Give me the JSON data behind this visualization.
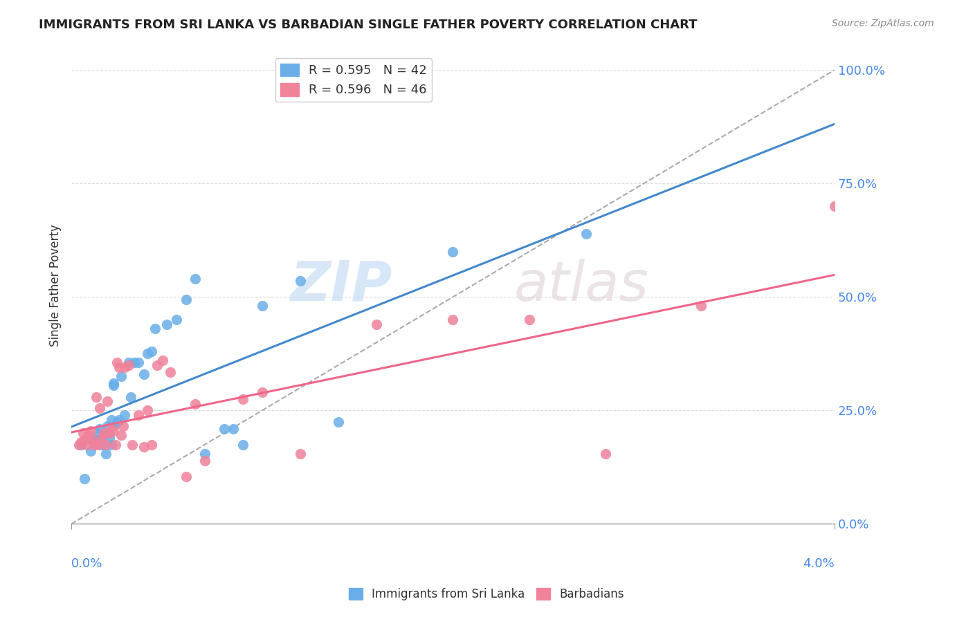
{
  "title": "IMMIGRANTS FROM SRI LANKA VS BARBADIAN SINGLE FATHER POVERTY CORRELATION CHART",
  "source": "Source: ZipAtlas.com",
  "ylabel": "Single Father Poverty",
  "ytick_labels": [
    "0.0%",
    "25.0%",
    "50.0%",
    "75.0%",
    "100.0%"
  ],
  "ytick_values": [
    0.0,
    0.25,
    0.5,
    0.75,
    1.0
  ],
  "xlim": [
    0.0,
    0.04
  ],
  "ylim": [
    0.0,
    1.05
  ],
  "color_blue": "#6aaee8",
  "color_pink": "#f0829a",
  "color_line_blue": "#4488cc",
  "color_line_pink": "#ee6688",
  "color_dashed_line": "#aaaaaa",
  "watermark_zip": "ZIP",
  "watermark_atlas": "atlas",
  "sri_lanka_x": [
    0.0005,
    0.0007,
    0.001,
    0.0012,
    0.0013,
    0.0014,
    0.0015,
    0.0016,
    0.0017,
    0.0018,
    0.0019,
    0.002,
    0.0021,
    0.0021,
    0.0022,
    0.0022,
    0.0023,
    0.0024,
    0.0025,
    0.0026,
    0.0028,
    0.003,
    0.0031,
    0.0033,
    0.0035,
    0.0038,
    0.004,
    0.0042,
    0.0044,
    0.005,
    0.0055,
    0.006,
    0.0065,
    0.007,
    0.008,
    0.0085,
    0.009,
    0.01,
    0.012,
    0.014,
    0.02,
    0.027
  ],
  "sri_lanka_y": [
    0.175,
    0.1,
    0.16,
    0.18,
    0.185,
    0.2,
    0.21,
    0.175,
    0.195,
    0.155,
    0.215,
    0.19,
    0.23,
    0.175,
    0.305,
    0.31,
    0.22,
    0.225,
    0.23,
    0.325,
    0.24,
    0.355,
    0.28,
    0.355,
    0.355,
    0.33,
    0.375,
    0.38,
    0.43,
    0.44,
    0.45,
    0.495,
    0.54,
    0.155,
    0.21,
    0.21,
    0.175,
    0.48,
    0.535,
    0.225,
    0.6,
    0.64
  ],
  "barbadian_x": [
    0.0004,
    0.0005,
    0.0006,
    0.0007,
    0.0008,
    0.0009,
    0.001,
    0.0011,
    0.0012,
    0.0013,
    0.0014,
    0.0015,
    0.0016,
    0.0017,
    0.0018,
    0.0019,
    0.002,
    0.0021,
    0.0022,
    0.0023,
    0.0024,
    0.0025,
    0.0026,
    0.0027,
    0.0028,
    0.003,
    0.0032,
    0.0035,
    0.0038,
    0.004,
    0.0042,
    0.0045,
    0.0048,
    0.0052,
    0.006,
    0.0065,
    0.007,
    0.009,
    0.01,
    0.012,
    0.016,
    0.02,
    0.024,
    0.028,
    0.033,
    0.04
  ],
  "barbadian_y": [
    0.175,
    0.18,
    0.2,
    0.185,
    0.175,
    0.195,
    0.205,
    0.185,
    0.175,
    0.28,
    0.175,
    0.255,
    0.19,
    0.2,
    0.175,
    0.27,
    0.2,
    0.21,
    0.205,
    0.175,
    0.355,
    0.345,
    0.195,
    0.215,
    0.345,
    0.35,
    0.175,
    0.24,
    0.17,
    0.25,
    0.175,
    0.35,
    0.36,
    0.335,
    0.105,
    0.265,
    0.14,
    0.275,
    0.29,
    0.155,
    0.44,
    0.45,
    0.45,
    0.155,
    0.48,
    0.7
  ]
}
